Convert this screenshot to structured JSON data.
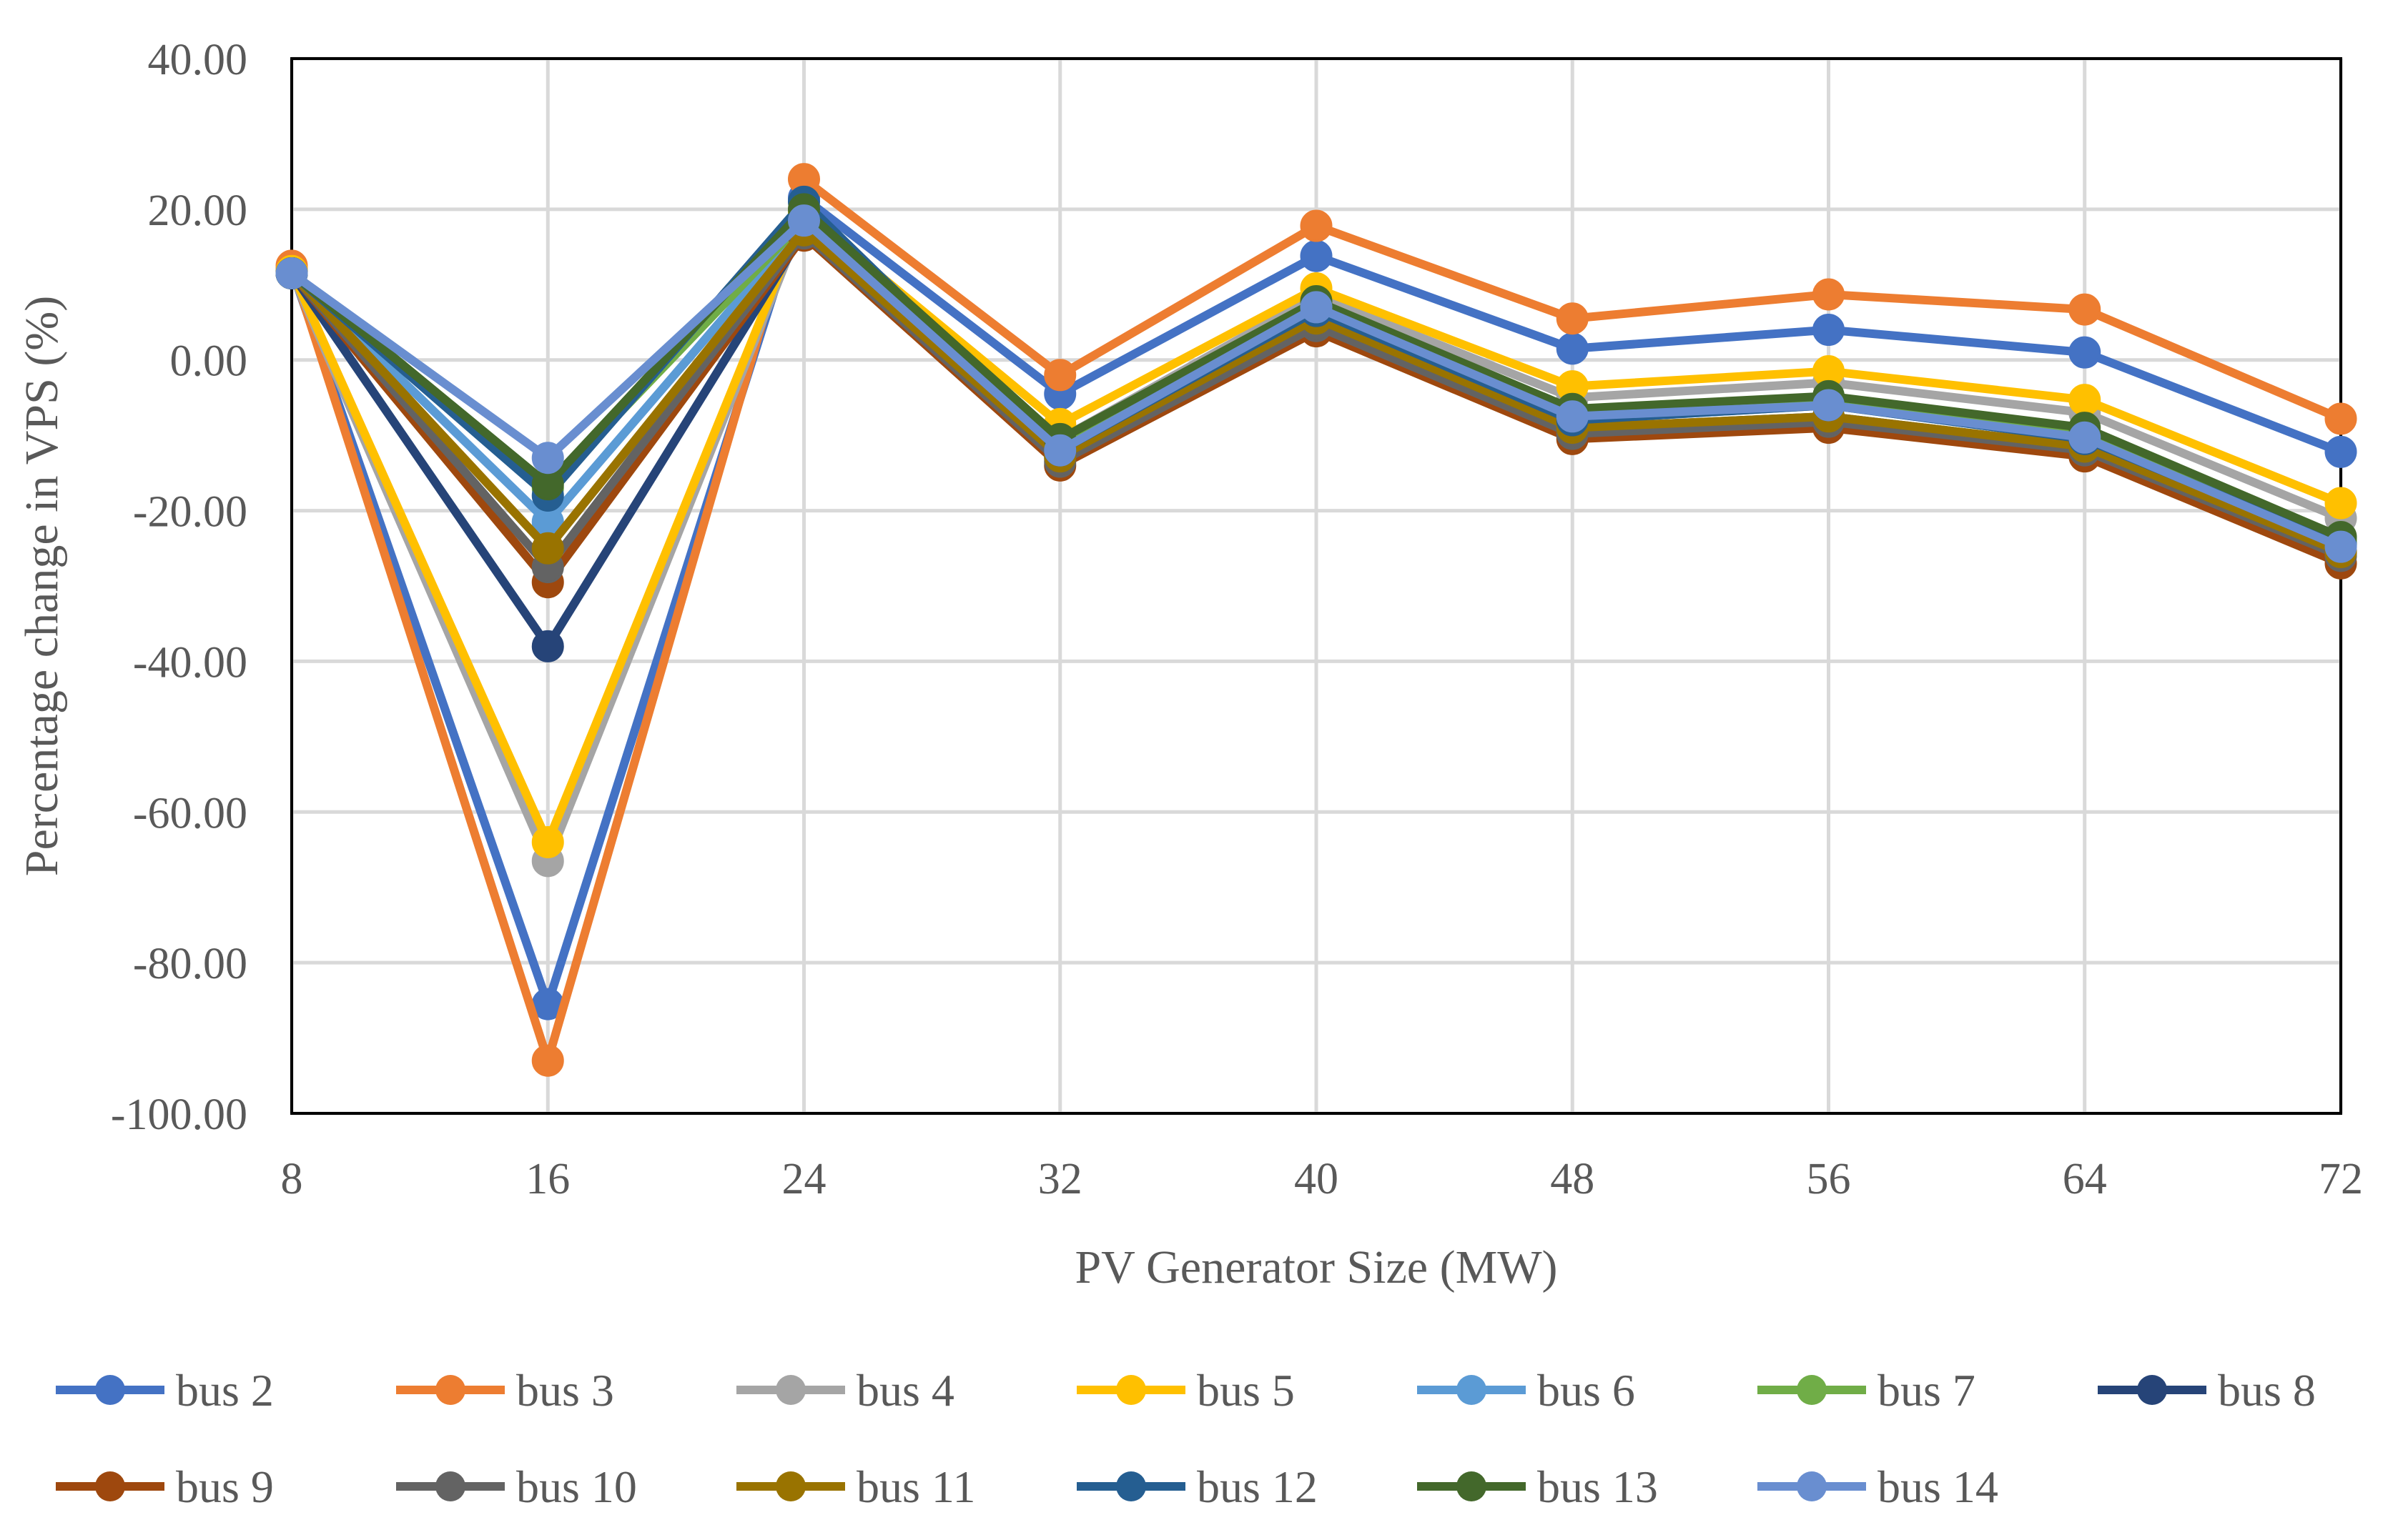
{
  "chart_data": {
    "type": "line",
    "title": "",
    "xlabel": "PV Generator Size (MW)",
    "ylabel": "Percentage change in VPS (%)",
    "categories": [
      "8",
      "16",
      "24",
      "32",
      "40",
      "48",
      "56",
      "64",
      "72"
    ],
    "ylim": [
      -100,
      40
    ],
    "yticks": [
      "40.00",
      "20.00",
      "0.00",
      "-20.00",
      "-40.00",
      "-60.00",
      "-80.00",
      "-100.00"
    ],
    "grid": true,
    "legend_position": "bottom",
    "series": [
      {
        "name": "bus 2",
        "color": "#4472C4",
        "values": [
          12.0,
          -85.5,
          21.5,
          -4.5,
          13.8,
          1.5,
          4.0,
          1.0,
          -12.2
        ]
      },
      {
        "name": "bus 3",
        "color": "#ED7D31",
        "values": [
          12.5,
          -93.0,
          24.0,
          -2.0,
          17.8,
          5.5,
          8.7,
          6.7,
          -7.8
        ]
      },
      {
        "name": "bus 4",
        "color": "#A5A5A5",
        "values": [
          11.5,
          -66.5,
          19.0,
          -10.5,
          8.5,
          -5.0,
          -3.0,
          -7.0,
          -21.0
        ]
      },
      {
        "name": "bus 5",
        "color": "#FFC000",
        "values": [
          11.8,
          -64.0,
          19.5,
          -8.5,
          9.5,
          -3.5,
          -1.5,
          -5.3,
          -19.0
        ]
      },
      {
        "name": "bus 6",
        "color": "#5B9BD5",
        "values": [
          11.5,
          -21.5,
          18.0,
          -12.0,
          6.5,
          -8.0,
          -6.0,
          -10.5,
          -24.0
        ]
      },
      {
        "name": "bus 7",
        "color": "#70AD47",
        "values": [
          11.5,
          -17.0,
          18.5,
          -11.5,
          7.0,
          -7.0,
          -5.5,
          -9.5,
          -24.0
        ]
      },
      {
        "name": "bus 8",
        "color": "#264478",
        "values": [
          11.5,
          -38.0,
          17.0,
          -13.0,
          5.0,
          -9.0,
          -7.5,
          -11.5,
          -25.5
        ]
      },
      {
        "name": "bus 9",
        "color": "#9E480E",
        "values": [
          11.5,
          -29.5,
          16.5,
          -14.0,
          3.8,
          -10.5,
          -9.0,
          -12.8,
          -27.0
        ]
      },
      {
        "name": "bus 10",
        "color": "#636363",
        "values": [
          11.5,
          -27.5,
          16.8,
          -13.5,
          4.5,
          -9.8,
          -8.2,
          -12.0,
          -26.0
        ]
      },
      {
        "name": "bus 11",
        "color": "#997300",
        "values": [
          11.5,
          -25.0,
          17.2,
          -12.8,
          5.5,
          -9.0,
          -7.5,
          -11.5,
          -25.5
        ]
      },
      {
        "name": "bus 12",
        "color": "#255E91",
        "values": [
          11.5,
          -18.0,
          21.0,
          -12.0,
          6.5,
          -8.0,
          -6.0,
          -10.5,
          -24.5
        ]
      },
      {
        "name": "bus 13",
        "color": "#43682B",
        "values": [
          11.5,
          -16.5,
          20.0,
          -10.5,
          7.8,
          -6.5,
          -4.8,
          -9.0,
          -23.5
        ]
      },
      {
        "name": "bus 14",
        "color": "#698ED0",
        "values": [
          11.5,
          -13.0,
          18.5,
          -12.0,
          7.0,
          -7.5,
          -6.0,
          -10.3,
          -24.8
        ]
      }
    ]
  }
}
